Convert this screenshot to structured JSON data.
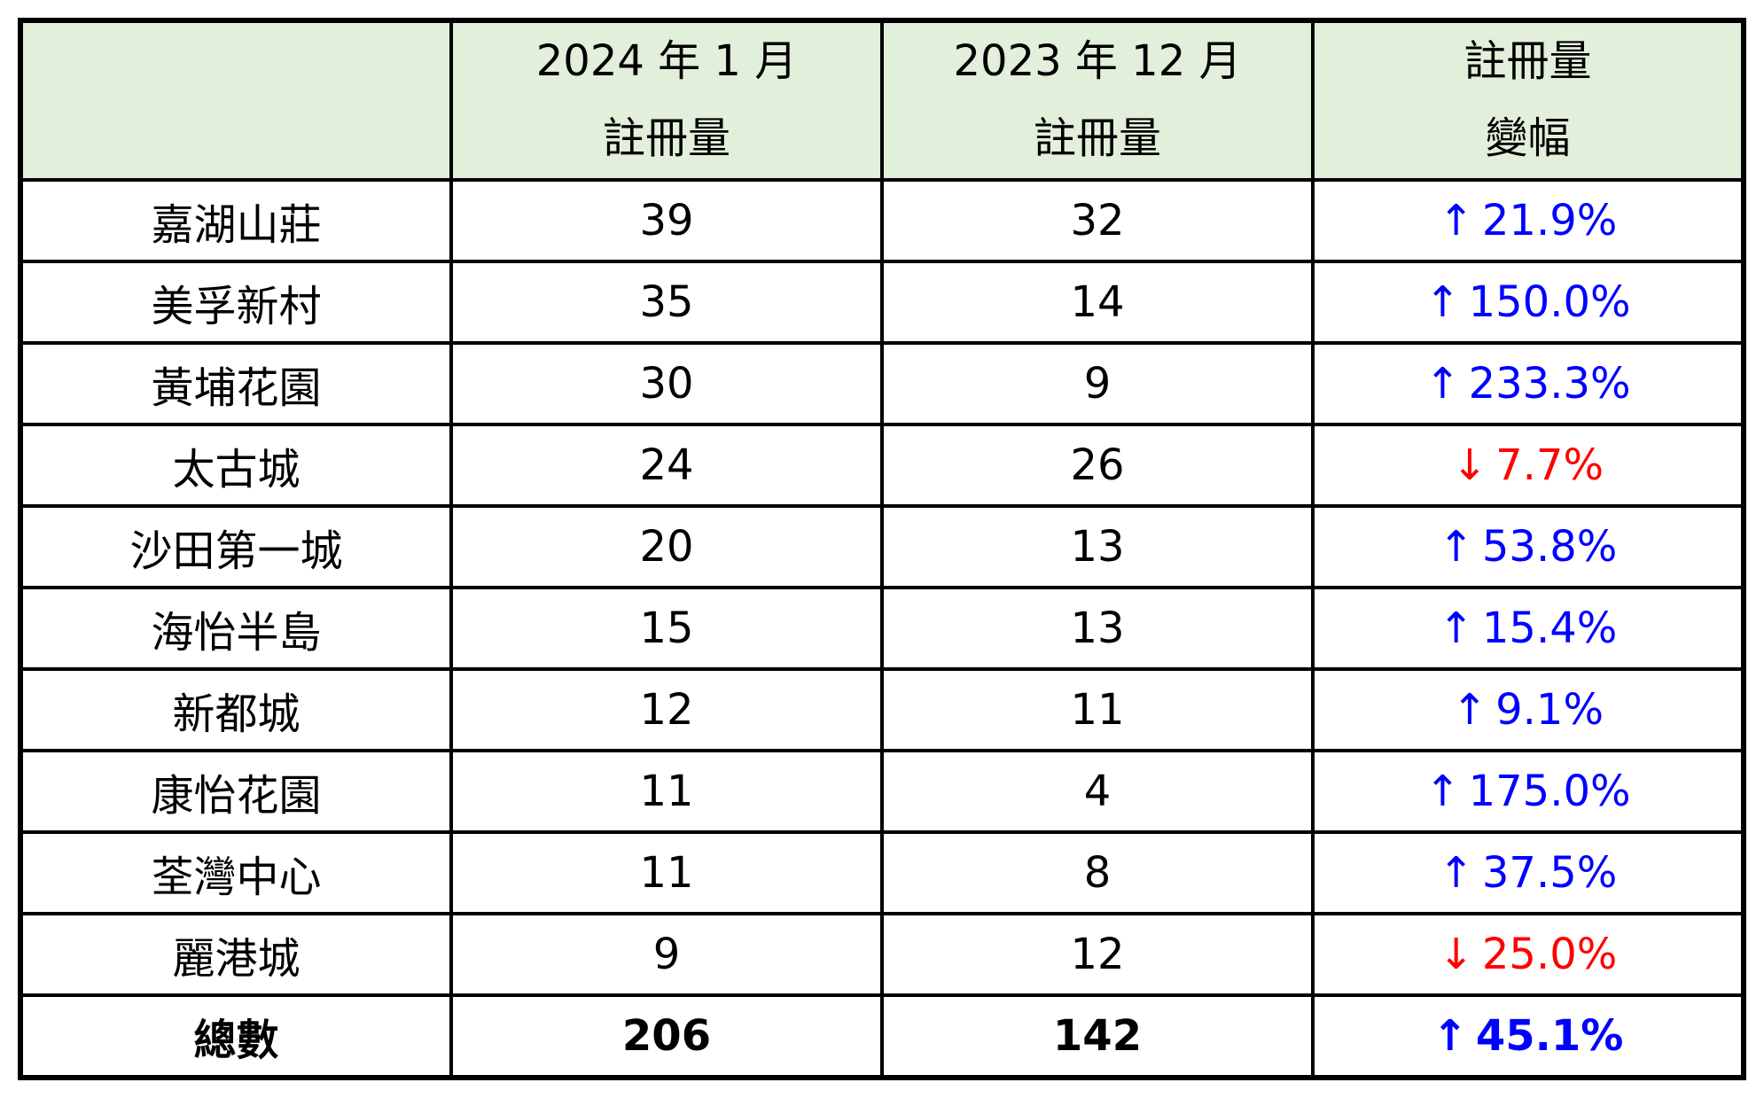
{
  "colors": {
    "header_bg": "#e2efda",
    "increase_blue": "#0000ff",
    "decrease_red": "#ff0000",
    "border": "#000000",
    "text": "#000000"
  },
  "chart_data": {
    "type": "table",
    "columns": [
      "",
      "2024 年 1 月 註冊量",
      "2023 年 12 月 註冊量",
      "註冊量 變幅"
    ],
    "rows": [
      [
        "嘉湖山莊",
        39,
        32,
        "+21.9%"
      ],
      [
        "美孚新村",
        35,
        14,
        "+150.0%"
      ],
      [
        "黃埔花園",
        30,
        9,
        "+233.3%"
      ],
      [
        "太古城",
        24,
        26,
        "-7.7%"
      ],
      [
        "沙田第一城",
        20,
        13,
        "+53.8%"
      ],
      [
        "海怡半島",
        15,
        13,
        "+15.4%"
      ],
      [
        "新都城",
        12,
        11,
        "+9.1%"
      ],
      [
        "康怡花園",
        11,
        4,
        "+175.0%"
      ],
      [
        "荃灣中心",
        11,
        8,
        "+37.5%"
      ],
      [
        "麗港城",
        9,
        12,
        "-25.0%"
      ],
      [
        "總數",
        206,
        142,
        "+45.1%"
      ]
    ]
  },
  "table": {
    "header": {
      "estate": "",
      "jan_line1": "2024 年 1 月",
      "jan_line2": "註冊量",
      "dec_line1": "2023 年 12 月",
      "dec_line2": "註冊量",
      "change_line1": "註冊量",
      "change_line2": "變幅"
    },
    "rows": [
      {
        "name": "嘉湖山莊",
        "jan": "39",
        "dec": "32",
        "arrow": "↑",
        "arrow_icon": "up-arrow-icon",
        "change": "21.9%",
        "change_color": "#0000ff"
      },
      {
        "name": "美孚新村",
        "jan": "35",
        "dec": "14",
        "arrow": "↑",
        "arrow_icon": "up-arrow-icon",
        "change": "150.0%",
        "change_color": "#0000ff"
      },
      {
        "name": "黃埔花園",
        "jan": "30",
        "dec": "9",
        "arrow": "↑",
        "arrow_icon": "up-arrow-icon",
        "change": "233.3%",
        "change_color": "#0000ff"
      },
      {
        "name": "太古城",
        "jan": "24",
        "dec": "26",
        "arrow": "↓",
        "arrow_icon": "down-arrow-icon",
        "change": "7.7%",
        "change_color": "#ff0000"
      },
      {
        "name": "沙田第一城",
        "jan": "20",
        "dec": "13",
        "arrow": "↑",
        "arrow_icon": "up-arrow-icon",
        "change": "53.8%",
        "change_color": "#0000ff"
      },
      {
        "name": "海怡半島",
        "jan": "15",
        "dec": "13",
        "arrow": "↑",
        "arrow_icon": "up-arrow-icon",
        "change": "15.4%",
        "change_color": "#0000ff"
      },
      {
        "name": "新都城",
        "jan": "12",
        "dec": "11",
        "arrow": "↑",
        "arrow_icon": "up-arrow-icon",
        "change": "9.1%",
        "change_color": "#0000ff"
      },
      {
        "name": "康怡花園",
        "jan": "11",
        "dec": "4",
        "arrow": "↑",
        "arrow_icon": "up-arrow-icon",
        "change": "175.0%",
        "change_color": "#0000ff"
      },
      {
        "name": "荃灣中心",
        "jan": "11",
        "dec": "8",
        "arrow": "↑",
        "arrow_icon": "up-arrow-icon",
        "change": "37.5%",
        "change_color": "#0000ff"
      },
      {
        "name": "麗港城",
        "jan": "9",
        "dec": "12",
        "arrow": "↓",
        "arrow_icon": "down-arrow-icon",
        "change": "25.0%",
        "change_color": "#ff0000"
      }
    ],
    "total": {
      "name": "總數",
      "jan": "206",
      "dec": "142",
      "arrow": "↑",
      "arrow_icon": "up-arrow-icon",
      "change": "45.1%",
      "change_color": "#0000ff"
    }
  }
}
